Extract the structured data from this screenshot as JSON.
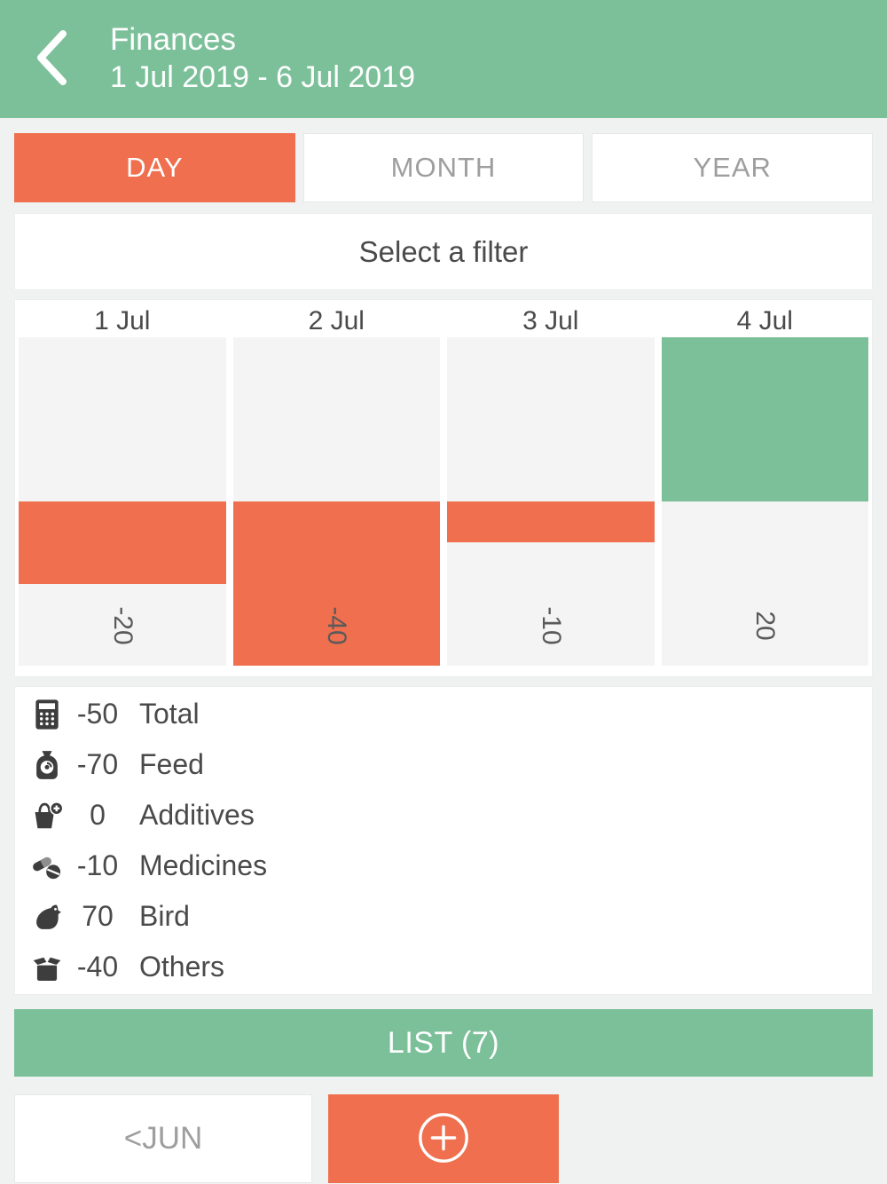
{
  "header": {
    "back_icon": "chevron-left",
    "title": "Finances",
    "date_range": "1 Jul 2019 - 6 Jul 2019"
  },
  "tabs": {
    "items": [
      {
        "label": "DAY",
        "active": true
      },
      {
        "label": "MONTH",
        "active": false
      },
      {
        "label": "YEAR",
        "active": false
      }
    ]
  },
  "filter": {
    "label": "Select a filter"
  },
  "chart_data": {
    "type": "bar",
    "categories": [
      "1 Jul",
      "2 Jul",
      "3 Jul",
      "4 Jul"
    ],
    "values": [
      -20,
      -40,
      -10,
      20
    ],
    "value_labels": [
      "-20",
      "-40",
      "-10",
      "20"
    ],
    "positive_color": "#7cc09a",
    "negative_color": "#ef6f4e",
    "ylim": [
      -40,
      20
    ],
    "grid": false,
    "legend": "none",
    "title": ""
  },
  "summary": {
    "rows": [
      {
        "icon": "calculator-icon",
        "value": "-50",
        "label": "Total"
      },
      {
        "icon": "feed-bag-icon",
        "value": "-70",
        "label": "Feed"
      },
      {
        "icon": "additives-basket-icon",
        "value": "0",
        "label": "Additives"
      },
      {
        "icon": "medicines-pills-icon",
        "value": "-10",
        "label": "Medicines"
      },
      {
        "icon": "bird-icon",
        "value": "70",
        "label": "Bird"
      },
      {
        "icon": "others-box-icon",
        "value": "-40",
        "label": "Others"
      }
    ]
  },
  "list_button": {
    "label": "LIST (7)"
  },
  "footer": {
    "prev_month_label": "<JUN",
    "add_icon": "plus"
  },
  "colors": {
    "accent_green": "#7cc09a",
    "accent_orange": "#ef6f4e",
    "background": "#f0f1f1",
    "text_dark": "#4a4a4a",
    "text_muted": "#9e9e9e"
  }
}
